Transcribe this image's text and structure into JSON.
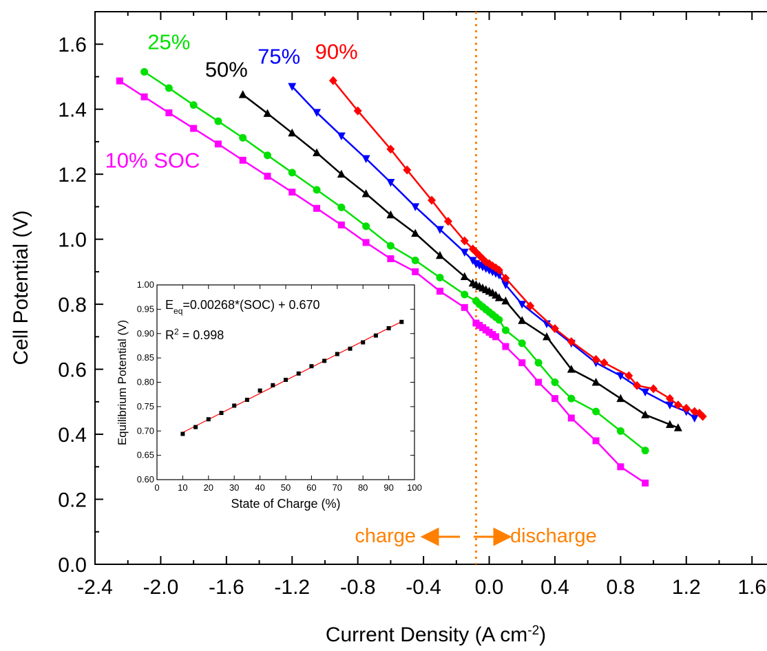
{
  "chart_data": [
    {
      "type": "line",
      "xlabel_main": "Current Density (A cm",
      "xlabel_sup": "-2",
      "xlabel_tail": ")",
      "ylabel": "Cell Potential (V)",
      "xlim": [
        -2.4,
        1.75
      ],
      "ylim": [
        0.0,
        1.7
      ],
      "xticks": [
        -2.4,
        -2.0,
        -1.6,
        -1.2,
        -0.8,
        -0.4,
        0.0,
        0.4,
        0.8,
        1.2,
        1.6
      ],
      "xtick_labels": [
        "-2.4",
        "-2.0",
        "-1.6",
        "-1.2",
        "-0.8",
        "-0.4",
        "0.0",
        "0.4",
        "0.8",
        "1.2",
        "1.6"
      ],
      "yticks": [
        0.0,
        0.2,
        0.4,
        0.6,
        0.8,
        1.0,
        1.2,
        1.4,
        1.6
      ],
      "ytick_labels": [
        "0.0",
        "0.2",
        "0.4",
        "0.6",
        "0.8",
        "1.0",
        "1.2",
        "1.4",
        "1.6"
      ],
      "vline_x": -0.08,
      "series": [
        {
          "name": "10% SOC",
          "color": "#ff00ff",
          "marker": "square",
          "label_x": -2.05,
          "label_y": 1.22,
          "x": [
            -2.25,
            -2.1,
            -1.95,
            -1.8,
            -1.65,
            -1.5,
            -1.35,
            -1.2,
            -1.05,
            -0.9,
            -0.75,
            -0.6,
            -0.45,
            -0.3,
            -0.15,
            -0.08,
            -0.06,
            -0.04,
            -0.02,
            0.0,
            0.02,
            0.04,
            0.1,
            0.2,
            0.3,
            0.4,
            0.5,
            0.65,
            0.8,
            0.95
          ],
          "y": [
            1.487,
            1.438,
            1.389,
            1.341,
            1.293,
            1.243,
            1.194,
            1.145,
            1.095,
            1.044,
            0.99,
            0.94,
            0.9,
            0.84,
            0.79,
            0.742,
            0.735,
            0.728,
            0.721,
            0.714,
            0.707,
            0.7,
            0.67,
            0.62,
            0.56,
            0.51,
            0.45,
            0.38,
            0.3,
            0.25
          ]
        },
        {
          "name": "25%",
          "color": "#00e000",
          "marker": "circle",
          "label_x": -1.95,
          "label_y": 1.585,
          "x": [
            -2.1,
            -1.95,
            -1.8,
            -1.65,
            -1.5,
            -1.35,
            -1.2,
            -1.05,
            -0.9,
            -0.75,
            -0.6,
            -0.45,
            -0.3,
            -0.15,
            -0.08,
            -0.06,
            -0.04,
            -0.02,
            0.0,
            0.02,
            0.04,
            0.06,
            0.1,
            0.2,
            0.3,
            0.4,
            0.5,
            0.65,
            0.8,
            0.95
          ],
          "y": [
            1.515,
            1.465,
            1.413,
            1.363,
            1.312,
            1.258,
            1.205,
            1.152,
            1.098,
            1.04,
            0.98,
            0.935,
            0.882,
            0.83,
            0.81,
            0.8,
            0.792,
            0.784,
            0.776,
            0.768,
            0.76,
            0.752,
            0.72,
            0.68,
            0.62,
            0.56,
            0.51,
            0.47,
            0.41,
            0.35
          ]
        },
        {
          "name": "50%",
          "color": "#000000",
          "marker": "triangle-up",
          "label_x": -1.6,
          "label_y": 1.5,
          "x": [
            -1.5,
            -1.35,
            -1.2,
            -1.05,
            -0.9,
            -0.75,
            -0.6,
            -0.45,
            -0.3,
            -0.15,
            -0.1,
            -0.08,
            -0.06,
            -0.04,
            -0.02,
            0.0,
            0.02,
            0.04,
            0.06,
            0.1,
            0.2,
            0.35,
            0.5,
            0.65,
            0.8,
            0.95,
            1.1,
            1.15
          ],
          "y": [
            1.445,
            1.387,
            1.327,
            1.266,
            1.2,
            1.14,
            1.075,
            1.018,
            0.95,
            0.885,
            0.865,
            0.86,
            0.855,
            0.85,
            0.845,
            0.84,
            0.835,
            0.828,
            0.82,
            0.81,
            0.75,
            0.7,
            0.6,
            0.56,
            0.51,
            0.46,
            0.43,
            0.42
          ]
        },
        {
          "name": "75%",
          "color": "#0000ff",
          "marker": "triangle-down",
          "label_x": -1.28,
          "label_y": 1.54,
          "x": [
            -1.2,
            -1.05,
            -0.9,
            -0.75,
            -0.6,
            -0.45,
            -0.3,
            -0.15,
            -0.1,
            -0.08,
            -0.06,
            -0.04,
            -0.02,
            0.0,
            0.02,
            0.04,
            0.06,
            0.1,
            0.2,
            0.35,
            0.5,
            0.65,
            0.8,
            0.95,
            1.1,
            1.2,
            1.25
          ],
          "y": [
            1.47,
            1.39,
            1.318,
            1.248,
            1.175,
            1.1,
            1.03,
            0.96,
            0.935,
            0.925,
            0.92,
            0.915,
            0.91,
            0.905,
            0.9,
            0.895,
            0.89,
            0.86,
            0.8,
            0.74,
            0.68,
            0.62,
            0.58,
            0.53,
            0.49,
            0.47,
            0.45
          ]
        },
        {
          "name": "90%",
          "color": "#ff0000",
          "marker": "diamond",
          "label_x": -0.93,
          "label_y": 1.555,
          "x": [
            -0.95,
            -0.8,
            -0.6,
            -0.5,
            -0.35,
            -0.25,
            -0.15,
            -0.1,
            -0.08,
            -0.06,
            -0.04,
            -0.02,
            0.0,
            0.02,
            0.04,
            0.06,
            0.1,
            0.25,
            0.4,
            0.5,
            0.65,
            0.7,
            0.85,
            0.9,
            1.0,
            1.1,
            1.15,
            1.2,
            1.25,
            1.28,
            1.3
          ],
          "y": [
            1.488,
            1.395,
            1.277,
            1.213,
            1.12,
            1.055,
            0.995,
            0.97,
            0.96,
            0.95,
            0.94,
            0.93,
            0.925,
            0.918,
            0.912,
            0.905,
            0.88,
            0.795,
            0.725,
            0.685,
            0.63,
            0.62,
            0.58,
            0.55,
            0.54,
            0.51,
            0.49,
            0.48,
            0.47,
            0.465,
            0.455
          ]
        }
      ],
      "annotations": {
        "charge": "charge",
        "discharge": "discharge",
        "color": "#ff8000"
      }
    },
    {
      "type": "scatter",
      "xlabel": "State of Charge (%)",
      "ylabel": "Equilibrium Potential (V)",
      "xlim": [
        0,
        100
      ],
      "ylim": [
        0.6,
        1.0
      ],
      "xticks": [
        0,
        10,
        20,
        30,
        40,
        50,
        60,
        70,
        80,
        90,
        100
      ],
      "xtick_labels": [
        "0",
        "10",
        "20",
        "30",
        "40",
        "50",
        "60",
        "70",
        "80",
        "90",
        "100"
      ],
      "yticks": [
        0.6,
        0.65,
        0.7,
        0.75,
        0.8,
        0.85,
        0.9,
        0.95,
        1.0
      ],
      "ytick_labels": [
        "0.60",
        "0.65",
        "0.70",
        "0.75",
        "0.80",
        "0.85",
        "0.90",
        "0.95",
        "1.00"
      ],
      "x": [
        10,
        15,
        20,
        25,
        30,
        35,
        40,
        45,
        50,
        55,
        60,
        65,
        70,
        75,
        80,
        85,
        90,
        95
      ],
      "y": [
        0.694,
        0.708,
        0.724,
        0.737,
        0.752,
        0.764,
        0.783,
        0.794,
        0.805,
        0.818,
        0.833,
        0.844,
        0.858,
        0.869,
        0.882,
        0.896,
        0.911,
        0.924
      ],
      "fit": {
        "slope": 0.00268,
        "intercept": 0.67,
        "color": "#ff0000"
      },
      "eq_prefix": "E",
      "eq_sub": "eq",
      "eq_rest": "=0.00268*(SOC) + 0.670",
      "r2_main": "R",
      "r2_sup": "2",
      "r2_rest": " = 0.998"
    }
  ]
}
